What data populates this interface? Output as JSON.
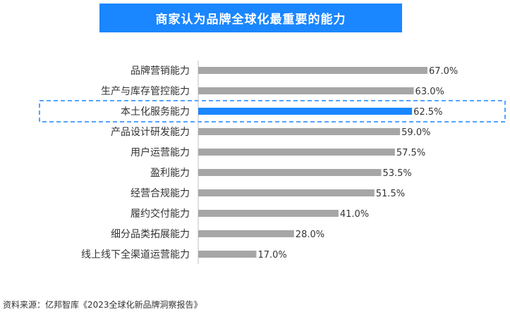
{
  "source_note": "资料来源：亿邦智库《2023全球化新品牌洞察报告》",
  "chart_data": {
    "type": "bar",
    "orientation": "horizontal",
    "title": "商家认为品牌全球化最重要的能力",
    "categories": [
      "品牌营销能力",
      "生产与库存管控能力",
      "本土化服务能力",
      "产品设计研发能力",
      "用户运营能力",
      "盈利能力",
      "经营合规能力",
      "履约交付能力",
      "细分品类拓展能力",
      "线上线下全渠道运营能力"
    ],
    "values": [
      67.0,
      63.0,
      62.5,
      59.0,
      57.5,
      53.5,
      51.5,
      41.0,
      28.0,
      17.0
    ],
    "value_labels": [
      "67.0%",
      "63.0%",
      "62.5%",
      "59.0%",
      "57.5%",
      "53.5%",
      "51.5%",
      "41.0%",
      "28.0%",
      "17.0%"
    ],
    "highlight_index": 2,
    "xlim": [
      0,
      100
    ],
    "grid": false,
    "colors": {
      "title_bg": "#1a86ff",
      "bar": "#a6a6a6",
      "highlight_bar": "#1a86ff",
      "highlight_box": "#1a86ff",
      "axis": "#bfbfbf",
      "text": "#333333"
    }
  }
}
